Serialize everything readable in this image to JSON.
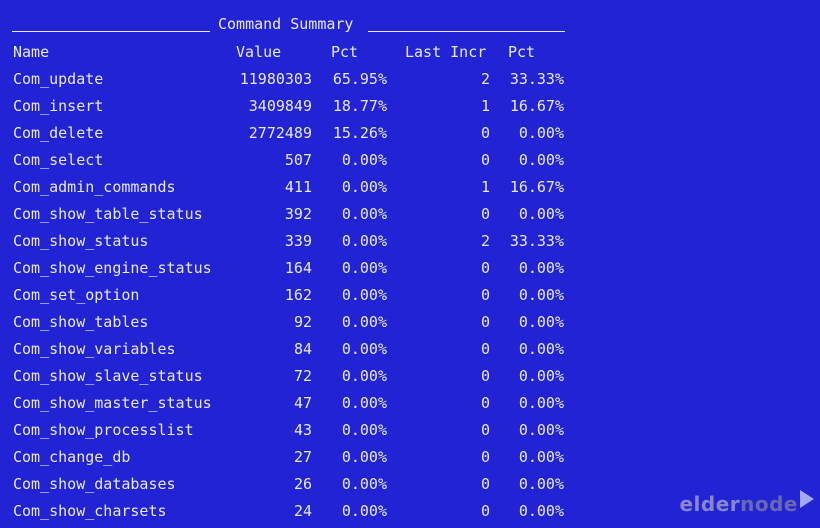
{
  "title": "Command Summary",
  "headers": {
    "name": "Name",
    "value": "Value",
    "pct": "Pct",
    "last_incr": "Last Incr",
    "pct2": "Pct"
  },
  "rows": [
    {
      "name": "Com_update",
      "value": "11980303",
      "pct": "65.95%",
      "last_incr": "2",
      "pct2": "33.33%"
    },
    {
      "name": "Com_insert",
      "value": "3409849",
      "pct": "18.77%",
      "last_incr": "1",
      "pct2": "16.67%"
    },
    {
      "name": "Com_delete",
      "value": "2772489",
      "pct": "15.26%",
      "last_incr": "0",
      "pct2": "0.00%"
    },
    {
      "name": "Com_select",
      "value": "507",
      "pct": "0.00%",
      "last_incr": "0",
      "pct2": "0.00%"
    },
    {
      "name": "Com_admin_commands",
      "value": "411",
      "pct": "0.00%",
      "last_incr": "1",
      "pct2": "16.67%"
    },
    {
      "name": "Com_show_table_status",
      "value": "392",
      "pct": "0.00%",
      "last_incr": "0",
      "pct2": "0.00%"
    },
    {
      "name": "Com_show_status",
      "value": "339",
      "pct": "0.00%",
      "last_incr": "2",
      "pct2": "33.33%"
    },
    {
      "name": "Com_show_engine_status",
      "value": "164",
      "pct": "0.00%",
      "last_incr": "0",
      "pct2": "0.00%"
    },
    {
      "name": "Com_set_option",
      "value": "162",
      "pct": "0.00%",
      "last_incr": "0",
      "pct2": "0.00%"
    },
    {
      "name": "Com_show_tables",
      "value": "92",
      "pct": "0.00%",
      "last_incr": "0",
      "pct2": "0.00%"
    },
    {
      "name": "Com_show_variables",
      "value": "84",
      "pct": "0.00%",
      "last_incr": "0",
      "pct2": "0.00%"
    },
    {
      "name": "Com_show_slave_status",
      "value": "72",
      "pct": "0.00%",
      "last_incr": "0",
      "pct2": "0.00%"
    },
    {
      "name": "Com_show_master_status",
      "value": "47",
      "pct": "0.00%",
      "last_incr": "0",
      "pct2": "0.00%"
    },
    {
      "name": "Com_show_processlist",
      "value": "43",
      "pct": "0.00%",
      "last_incr": "0",
      "pct2": "0.00%"
    },
    {
      "name": "Com_change_db",
      "value": "27",
      "pct": "0.00%",
      "last_incr": "0",
      "pct2": "0.00%"
    },
    {
      "name": "Com_show_databases",
      "value": "26",
      "pct": "0.00%",
      "last_incr": "0",
      "pct2": "0.00%"
    },
    {
      "name": "Com_show_charsets",
      "value": "24",
      "pct": "0.00%",
      "last_incr": "0",
      "pct2": "0.00%"
    }
  ],
  "watermark": {
    "part1": "elder",
    "part2": "node",
    "icon": "play-arrow-icon"
  },
  "colors": {
    "background": "#2323d6",
    "text": "#e8e8ff"
  }
}
